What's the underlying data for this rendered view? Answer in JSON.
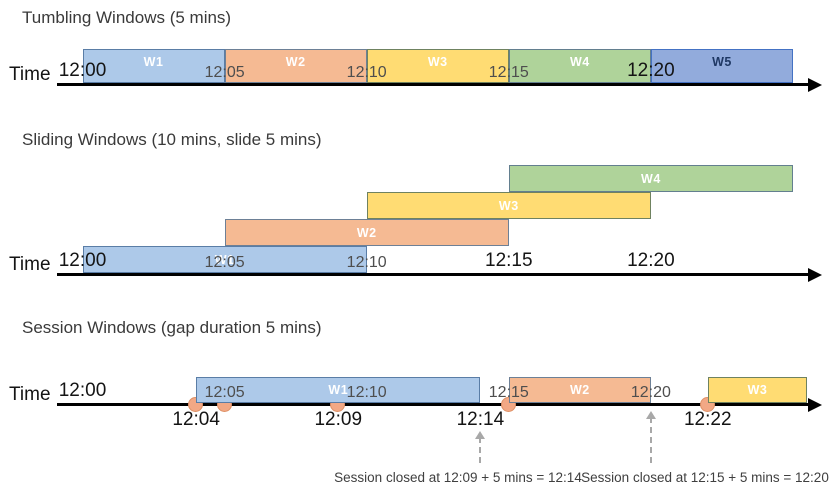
{
  "palette": {
    "blue": "#adc9e9",
    "orange": "#f5ba93",
    "yellow": "#ffdc73",
    "green": "#afd39a",
    "periwinkle": "#92abdc",
    "event_dot": "#f2a885",
    "axis": "#000000",
    "callout_gray": "#a8a8a8"
  },
  "sections": [
    {
      "id": "tumbling",
      "title": "Tumbling Windows (5 mins)",
      "time_axis_label": "Time",
      "ticks": [
        {
          "label": "12:00",
          "min": 0,
          "dim": false
        },
        {
          "label": "12:05",
          "min": 5,
          "dim": true
        },
        {
          "label": "12:10",
          "min": 10,
          "dim": true
        },
        {
          "label": "12:15",
          "min": 15,
          "dim": true
        },
        {
          "label": "12:20",
          "min": 20,
          "dim": false
        }
      ],
      "windows": [
        {
          "label": "W1",
          "start_min": 0,
          "end_min": 5,
          "fill": "blue",
          "row": 0
        },
        {
          "label": "W2",
          "start_min": 5,
          "end_min": 10,
          "fill": "orange",
          "row": 0
        },
        {
          "label": "W3",
          "start_min": 10,
          "end_min": 15,
          "fill": "yellow",
          "row": 0
        },
        {
          "label": "W4",
          "start_min": 15,
          "end_min": 20,
          "fill": "green",
          "row": 0
        },
        {
          "label": "W5",
          "start_min": 20,
          "end_min": 25,
          "fill": "periwinkle",
          "row": 0,
          "dark_label": true
        }
      ]
    },
    {
      "id": "sliding",
      "title": "Sliding Windows (10 mins, slide 5 mins)",
      "time_axis_label": "Time",
      "ticks": [
        {
          "label": "12:00",
          "min": 0,
          "dim": false
        },
        {
          "label": "12:05",
          "min": 5,
          "dim": true
        },
        {
          "label": "12:10",
          "min": 10,
          "dim": true
        },
        {
          "label": "12:15",
          "min": 15,
          "dim": false
        },
        {
          "label": "12:20",
          "min": 20,
          "dim": false
        }
      ],
      "windows": [
        {
          "label": "W1",
          "start_min": 0,
          "end_min": 10,
          "fill": "blue",
          "row": 0
        },
        {
          "label": "W2",
          "start_min": 5,
          "end_min": 15,
          "fill": "orange",
          "row": 1
        },
        {
          "label": "W3",
          "start_min": 10,
          "end_min": 20,
          "fill": "yellow",
          "row": 2
        },
        {
          "label": "W4",
          "start_min": 15,
          "end_min": 25,
          "fill": "green",
          "row": 3
        }
      ]
    },
    {
      "id": "session",
      "title": "Session Windows (gap duration 5 mins)",
      "time_axis_label": "Time",
      "ticks": [
        {
          "label": "12:00",
          "min": 0,
          "dim": false
        },
        {
          "label": "12:05",
          "min": 5,
          "dim": true
        },
        {
          "label": "12:10",
          "min": 10,
          "dim": true
        },
        {
          "label": "12:15",
          "min": 15,
          "dim": true
        },
        {
          "label": "12:20",
          "min": 20,
          "dim": true
        }
      ],
      "windows": [
        {
          "label": "W1",
          "start_min": 4,
          "end_min": 14,
          "fill": "blue",
          "row": 0
        },
        {
          "label": "W2",
          "start_min": 15,
          "end_min": 20,
          "fill": "orange",
          "row": 0
        },
        {
          "label": "W3",
          "start_min": 22,
          "end_min": 25.5,
          "fill": "yellow",
          "row": 0
        }
      ],
      "events": [
        {
          "min": 4
        },
        {
          "min": 5
        },
        {
          "min": 9
        },
        {
          "min": 15
        },
        {
          "min": 22
        }
      ],
      "event_labels": [
        {
          "text": "12:04",
          "min": 4
        },
        {
          "text": "12:09",
          "min": 9
        },
        {
          "text": "12:14",
          "min": 14
        },
        {
          "text": "12:22",
          "min": 22
        }
      ],
      "callouts": [
        {
          "text": "Session closed at 12:09 + 5 mins = 12:14",
          "arrow_min": 14
        },
        {
          "text": "Session closed at 12:15 + 5 mins = 12:20",
          "arrow_min": 20
        }
      ]
    }
  ]
}
